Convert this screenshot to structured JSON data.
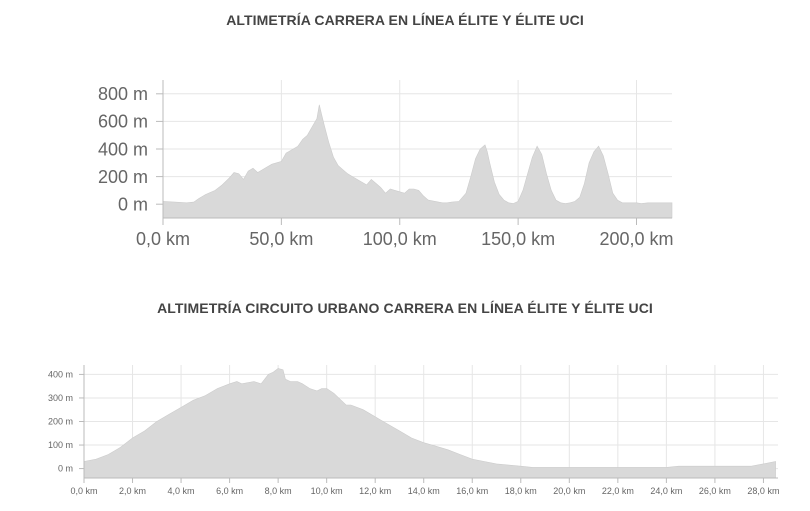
{
  "chart_data": [
    {
      "type": "area",
      "title": "ALTIMETRÍA CARRERA EN LÍNEA ÉLITE Y ÉLITE UCI",
      "xlabel": "",
      "ylabel": "",
      "xlim": [
        0,
        215
      ],
      "ylim": [
        -100,
        900
      ],
      "x_ticks": [
        0,
        50,
        100,
        150,
        200
      ],
      "x_tick_labels": [
        "0,0 km",
        "50,0 km",
        "100,0 km",
        "150,0 km",
        "200,0 km"
      ],
      "y_ticks": [
        0,
        200,
        400,
        600,
        800
      ],
      "y_tick_labels": [
        "0 m",
        "200 m",
        "400 m",
        "600 m",
        "800 m"
      ],
      "grid": true,
      "series": [
        {
          "x": [
            0,
            5,
            10,
            13,
            15,
            18,
            22,
            25,
            28,
            30,
            32,
            34,
            36,
            38,
            40,
            42,
            44,
            46,
            48,
            50,
            52,
            53,
            55,
            57,
            59,
            61,
            63,
            65,
            66,
            67,
            68,
            70,
            72,
            74,
            76,
            78,
            80,
            83,
            86,
            88,
            90,
            92,
            94,
            96,
            98,
            100,
            102,
            104,
            106,
            108,
            110,
            112,
            115,
            118,
            120,
            122,
            125,
            128,
            130,
            132,
            134,
            136,
            137,
            138,
            140,
            142,
            144,
            146,
            148,
            150,
            152,
            154,
            156,
            158,
            160,
            162,
            164,
            166,
            168,
            170,
            172,
            174,
            176,
            178,
            180,
            182,
            184,
            186,
            188,
            190,
            192,
            194,
            196,
            198,
            200,
            202,
            205,
            210,
            215
          ],
          "y": [
            20,
            15,
            10,
            15,
            40,
            70,
            100,
            140,
            190,
            230,
            220,
            180,
            240,
            260,
            230,
            250,
            270,
            290,
            300,
            310,
            370,
            380,
            400,
            420,
            470,
            500,
            560,
            620,
            720,
            650,
            580,
            450,
            340,
            280,
            250,
            220,
            200,
            170,
            140,
            180,
            150,
            120,
            80,
            110,
            100,
            90,
            80,
            110,
            110,
            100,
            60,
            30,
            20,
            10,
            10,
            15,
            20,
            80,
            200,
            330,
            400,
            430,
            380,
            300,
            160,
            70,
            30,
            10,
            5,
            20,
            100,
            220,
            340,
            420,
            360,
            220,
            100,
            30,
            10,
            5,
            10,
            20,
            50,
            150,
            300,
            380,
            420,
            350,
            220,
            80,
            30,
            10,
            10,
            10,
            10,
            5,
            10,
            10,
            10
          ]
        }
      ]
    },
    {
      "type": "area",
      "title": "ALTIMETRÍA CIRCUITO URBANO CARRERA EN LÍNEA ÉLITE Y ÉLITE UCI",
      "xlabel": "",
      "ylabel": "",
      "xlim": [
        0,
        28.6
      ],
      "ylim": [
        -40,
        440
      ],
      "x_ticks": [
        0,
        2,
        4,
        6,
        8,
        10,
        12,
        14,
        16,
        18,
        20,
        22,
        24,
        26,
        28
      ],
      "x_tick_labels": [
        "0,0 km",
        "2,0 km",
        "4,0 km",
        "6,0 km",
        "8,0 km",
        "10,0 km",
        "12,0 km",
        "14,0 km",
        "16,0 km",
        "18,0 km",
        "20,0 km",
        "22,0 km",
        "24,0 km",
        "26,0 km",
        "28,0 km"
      ],
      "y_ticks": [
        0,
        100,
        200,
        300,
        400
      ],
      "y_tick_labels": [
        "0 m",
        "100 m",
        "200 m",
        "300 m",
        "400 m"
      ],
      "grid": true,
      "series": [
        {
          "x": [
            0,
            0.5,
            1,
            1.5,
            2,
            2.5,
            3,
            3.5,
            4,
            4.5,
            5,
            5.5,
            6,
            6.3,
            6.5,
            7,
            7.3,
            7.6,
            7.8,
            8,
            8.2,
            8.3,
            8.5,
            8.8,
            9,
            9.3,
            9.6,
            9.8,
            10,
            10.3,
            10.6,
            10.8,
            11,
            11.5,
            12,
            12.5,
            13,
            13.5,
            14,
            14.5,
            15,
            15.5,
            16,
            16.5,
            17,
            17.5,
            18,
            18.5,
            19,
            19.5,
            20,
            21,
            22,
            23,
            24,
            24.5,
            25,
            26,
            26.5,
            27,
            27.5,
            28,
            28.5
          ],
          "y": [
            30,
            40,
            60,
            90,
            130,
            160,
            200,
            230,
            260,
            290,
            310,
            340,
            360,
            370,
            360,
            370,
            360,
            400,
            410,
            425,
            420,
            380,
            370,
            370,
            360,
            340,
            330,
            340,
            340,
            320,
            290,
            270,
            270,
            250,
            220,
            190,
            160,
            130,
            110,
            95,
            80,
            60,
            40,
            30,
            20,
            15,
            10,
            5,
            5,
            5,
            5,
            5,
            5,
            5,
            5,
            10,
            10,
            10,
            10,
            10,
            10,
            20,
            30
          ]
        }
      ]
    }
  ]
}
